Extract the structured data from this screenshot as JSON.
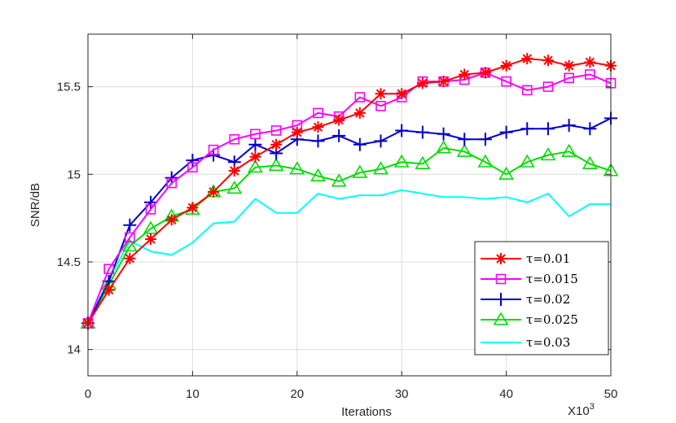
{
  "chart_data": {
    "type": "line",
    "title": "",
    "xlabel": "Iterations",
    "ylabel": "SNR/dB",
    "x_multiplier_label": "X10",
    "x_multiplier_exponent": "3",
    "xlim": [
      0,
      50
    ],
    "ylim": [
      13.85,
      15.8
    ],
    "xticks": [
      "0",
      "10",
      "20",
      "30",
      "40",
      "50"
    ],
    "yticks": [
      "14",
      "14.5",
      "15",
      "15.5"
    ],
    "grid": true,
    "legend_position": "bottom-right",
    "series": [
      {
        "name": "τ=0.01",
        "color": "#ff0000",
        "marker": "asterisk",
        "x": [
          0,
          2,
          4,
          6,
          8,
          10,
          12,
          14,
          16,
          18,
          20,
          22,
          24,
          26,
          28,
          30,
          32,
          34,
          36,
          38,
          40,
          42,
          44,
          46,
          48,
          50
        ],
        "y": [
          14.15,
          14.34,
          14.52,
          14.63,
          14.74,
          14.81,
          14.9,
          15.02,
          15.1,
          15.17,
          15.24,
          15.27,
          15.31,
          15.35,
          15.46,
          15.46,
          15.52,
          15.53,
          15.57,
          15.58,
          15.62,
          15.66,
          15.65,
          15.62,
          15.64,
          15.62
        ]
      },
      {
        "name": "τ=0.015",
        "color": "#ff00ff",
        "marker": "square",
        "x": [
          0,
          2,
          4,
          6,
          8,
          10,
          12,
          14,
          16,
          18,
          20,
          22,
          24,
          26,
          28,
          30,
          32,
          34,
          36,
          38,
          40,
          42,
          44,
          46,
          48,
          50
        ],
        "y": [
          14.15,
          14.46,
          14.64,
          14.8,
          14.95,
          15.04,
          15.14,
          15.2,
          15.23,
          15.25,
          15.28,
          15.35,
          15.33,
          15.44,
          15.39,
          15.44,
          15.53,
          15.53,
          15.54,
          15.58,
          15.53,
          15.48,
          15.5,
          15.55,
          15.57,
          15.52
        ]
      },
      {
        "name": "τ=0.02",
        "color": "#0000cc",
        "marker": "plus",
        "x": [
          0,
          2,
          4,
          6,
          8,
          10,
          12,
          14,
          16,
          18,
          20,
          22,
          24,
          26,
          28,
          30,
          32,
          34,
          36,
          38,
          40,
          42,
          44,
          46,
          48,
          50
        ],
        "y": [
          14.15,
          14.39,
          14.71,
          14.84,
          14.98,
          15.08,
          15.11,
          15.07,
          15.17,
          15.12,
          15.2,
          15.19,
          15.22,
          15.17,
          15.19,
          15.25,
          15.24,
          15.23,
          15.2,
          15.2,
          15.24,
          15.26,
          15.26,
          15.28,
          15.26,
          15.32
        ]
      },
      {
        "name": "τ=0.025",
        "color": "#00dd00",
        "marker": "triangle",
        "x": [
          0,
          2,
          4,
          6,
          8,
          10,
          12,
          14,
          16,
          18,
          20,
          22,
          24,
          26,
          28,
          30,
          32,
          34,
          36,
          38,
          40,
          42,
          44,
          46,
          48,
          50
        ],
        "y": [
          14.15,
          14.37,
          14.59,
          14.69,
          14.76,
          14.8,
          14.9,
          14.92,
          15.04,
          15.05,
          15.03,
          14.99,
          14.96,
          15.01,
          15.03,
          15.07,
          15.06,
          15.15,
          15.13,
          15.07,
          15.0,
          15.07,
          15.11,
          15.13,
          15.06,
          15.02
        ]
      },
      {
        "name": "τ=0.03",
        "color": "#00ffff",
        "marker": "none",
        "x": [
          0,
          2,
          4,
          6,
          8,
          10,
          12,
          14,
          16,
          18,
          20,
          22,
          24,
          26,
          28,
          30,
          32,
          34,
          36,
          38,
          40,
          42,
          44,
          46,
          48,
          50
        ],
        "y": [
          14.15,
          14.4,
          14.62,
          14.56,
          14.54,
          14.61,
          14.72,
          14.73,
          14.86,
          14.78,
          14.78,
          14.89,
          14.86,
          14.88,
          14.88,
          14.91,
          14.89,
          14.87,
          14.87,
          14.86,
          14.87,
          14.84,
          14.89,
          14.76,
          14.83,
          14.83
        ]
      }
    ]
  }
}
